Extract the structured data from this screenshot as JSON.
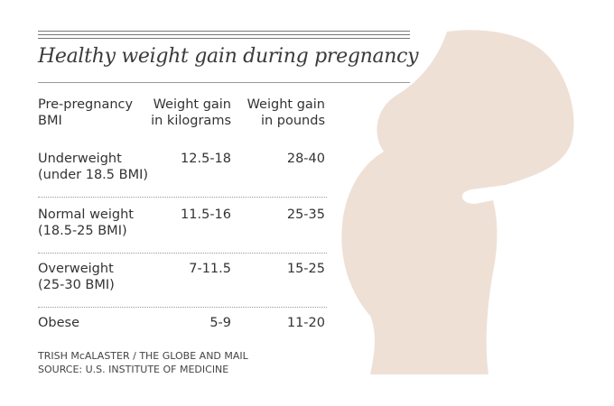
{
  "header": {
    "title": "Healthy weight gain during pregnancy"
  },
  "table": {
    "columns": [
      [
        "Pre-pregnancy",
        "BMI"
      ],
      [
        "Weight gain",
        "in kilograms"
      ],
      [
        "Weight gain",
        "in pounds"
      ]
    ],
    "rows": [
      [
        [
          "Underweight",
          "(under 18.5 BMI)"
        ],
        "12.5-18",
        "28-40"
      ],
      [
        [
          "Normal weight",
          "(18.5-25 BMI)"
        ],
        "11.5-16",
        "25-35"
      ],
      [
        [
          "Overweight",
          "(25-30 BMI)"
        ],
        "7-11.5",
        "15-25"
      ],
      [
        [
          "Obese"
        ],
        "5-9",
        "11-20"
      ]
    ]
  },
  "footer": {
    "credit": "TRISH McALASTER / THE GLOBE AND MAIL",
    "source": "SOURCE: U.S. INSTITUTE OF MEDICINE"
  }
}
